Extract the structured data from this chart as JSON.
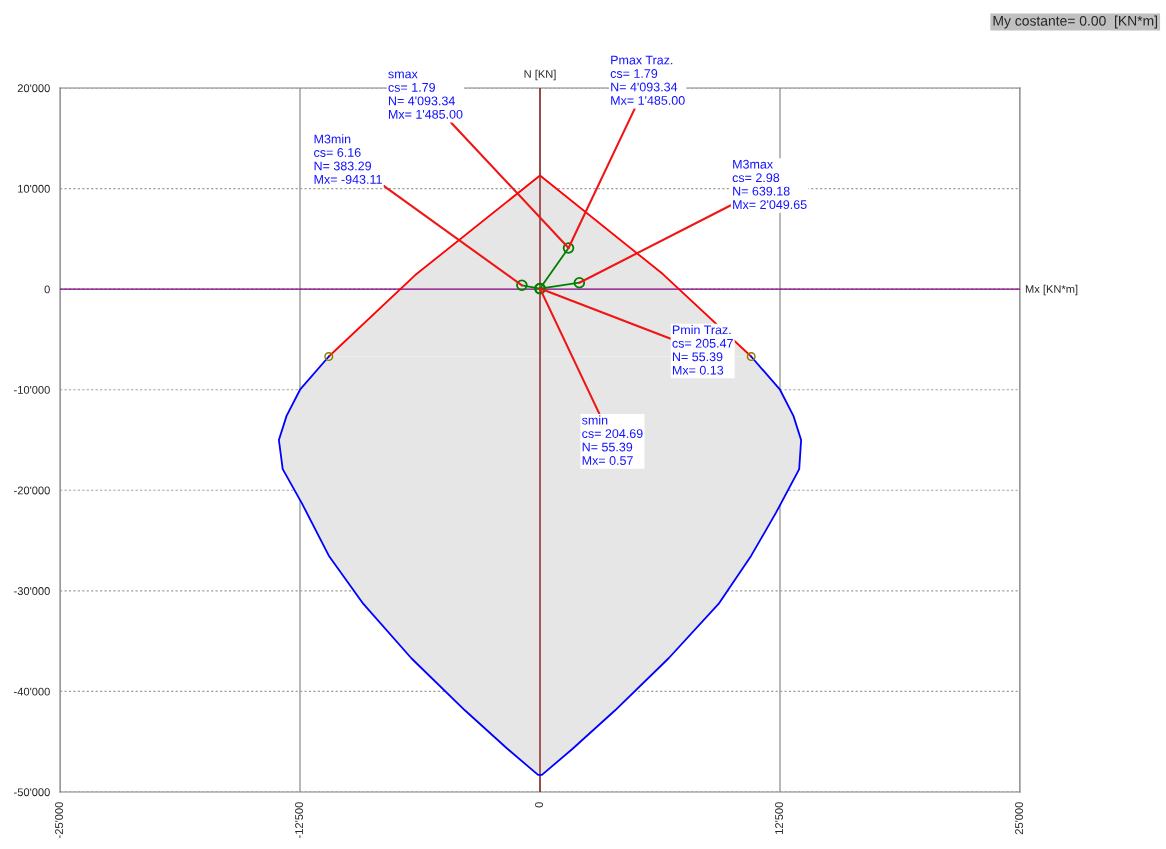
{
  "chart_data": {
    "type": "area",
    "title": "My costante= 0.00  [KN*m]",
    "xlabel": "Mx [KN*m]",
    "ylabel": "N [KN]",
    "xlim": [
      -25000,
      25000
    ],
    "ylim": [
      -50000,
      20000
    ],
    "xticks": [
      {
        "value": -25000,
        "label": "-25'000"
      },
      {
        "value": -12500,
        "label": "-12'500"
      },
      0,
      {
        "value": 12500,
        "label": "12'500"
      },
      {
        "value": 25000,
        "label": "25'000"
      }
    ],
    "yticks": [
      {
        "value": -50000,
        "label": "-50'000"
      },
      {
        "value": -40000,
        "label": "-40'000"
      },
      {
        "value": -30000,
        "label": "-30'000"
      },
      {
        "value": -20000,
        "label": "-20'000"
      },
      {
        "value": -10000,
        "label": "-10'000"
      },
      0,
      {
        "value": 10000,
        "label": "10'000"
      },
      {
        "value": 20000,
        "label": "20'000"
      }
    ],
    "grid": true,
    "series": [
      {
        "color": "#ff0000",
        "x": [
          -11000,
          -6500,
          0,
          6400,
          11000
        ],
        "values": [
          -6700,
          1400,
          11300,
          1500,
          -6700
        ]
      },
      {
        "color": "#0000ff",
        "x": [
          -11000,
          -12500,
          -13200,
          -13600,
          -13400,
          -12400,
          -11000,
          -9200,
          -6700,
          -3900,
          -1700,
          -100,
          100,
          1700,
          3900,
          6700,
          9300,
          11000,
          12300,
          13500,
          13600,
          13200,
          12500,
          11000
        ],
        "values": [
          -6700,
          -10000,
          -12600,
          -15000,
          -17900,
          -21300,
          -26500,
          -31300,
          -36700,
          -41900,
          -45700,
          -48300,
          -48300,
          -45700,
          -41900,
          -36700,
          -31300,
          -26500,
          -22200,
          -17900,
          -15000,
          -12600,
          -10000,
          -6700
        ]
      },
      {
        "type": "scatter",
        "color": "#808000",
        "marker": "circle",
        "x": [
          -11000,
          11000
        ],
        "values": [
          -6700,
          -6700
        ]
      },
      {
        "type": "line",
        "color": "#008000",
        "marker": "circle",
        "x": [
          -943.11,
          0.57,
          1485,
          0.57,
          2049.65
        ],
        "values": [
          383.29,
          55.39,
          4093.34,
          55.39,
          639.18
        ]
      }
    ],
    "ref_lines": [
      {
        "axis": "y",
        "value": 0,
        "color": "#800080"
      },
      {
        "axis": "x",
        "value": 0,
        "color": "#8b1a1a"
      }
    ],
    "annotations": [
      {
        "text": "smax\ncs= 1.79\nN= 4'093.34\nMx= 1'485.00",
        "x": 1485,
        "y": 4093.34
      },
      {
        "text": "Pmax Traz.\ncs= 1.79\nN= 4'093.34\nMx= 1'485.00",
        "x": 1485,
        "y": 4093.34
      },
      {
        "text": "M3min\ncs= 6.16\nN= 383.29\nMx= -943.11",
        "x": -943.11,
        "y": 383.29
      },
      {
        "text": "M3max\ncs= 2.98\nN= 639.18\nMx= 2'049.65",
        "x": 2049.65,
        "y": 639.18
      },
      {
        "text": "Pmin Traz.\ncs= 205.47\nN= 55.39\nMx= 0.13",
        "x": 0.13,
        "y": 55.39
      },
      {
        "text": "smin\ncs= 204.69\nN= 55.39\nMx= 0.57",
        "x": 0.57,
        "y": 55.39
      }
    ]
  }
}
